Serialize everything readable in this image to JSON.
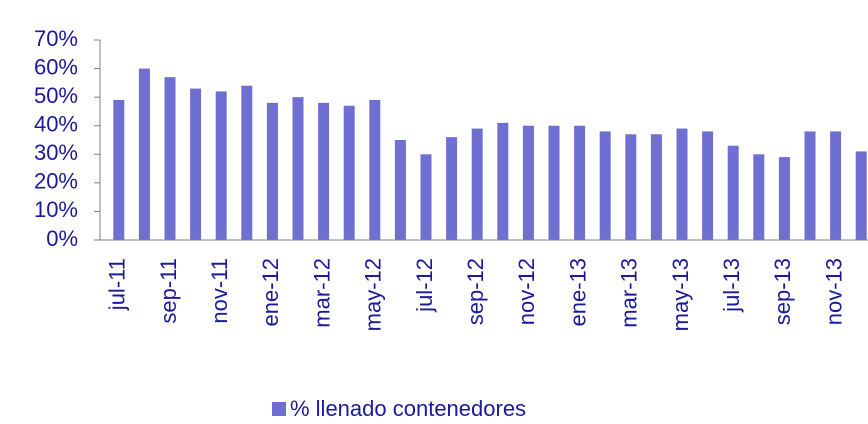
{
  "chart_data": {
    "type": "bar",
    "categories": [
      "jul-11",
      null,
      "sep-11",
      null,
      "nov-11",
      null,
      "ene-12",
      null,
      "mar-12",
      null,
      "may-12",
      null,
      "jul-12",
      null,
      "sep-12",
      null,
      "nov-12",
      null,
      "ene-13",
      null,
      "mar-13",
      null,
      "may-13",
      null,
      "jul-13",
      null,
      "sep-13",
      null,
      "nov-13",
      null
    ],
    "series": [
      {
        "name": "% llenado contenedores",
        "color": "#6f6fd2",
        "values": [
          49,
          60,
          57,
          53,
          52,
          54,
          48,
          50,
          48,
          47,
          49,
          35,
          30,
          36,
          39,
          41,
          40,
          40,
          40,
          38,
          37,
          37,
          39,
          38,
          33,
          30,
          29,
          38,
          38,
          31
        ]
      }
    ],
    "ylim": [
      0,
      70
    ],
    "yticks": [
      {
        "value": 0,
        "label": "0%"
      },
      {
        "value": 10,
        "label": "10%"
      },
      {
        "value": 20,
        "label": "20%"
      },
      {
        "value": 30,
        "label": "30%"
      },
      {
        "value": 40,
        "label": "40%"
      },
      {
        "value": 50,
        "label": "50%"
      },
      {
        "value": 60,
        "label": "60%"
      },
      {
        "value": 70,
        "label": "70%"
      }
    ],
    "legend": "bottom"
  }
}
